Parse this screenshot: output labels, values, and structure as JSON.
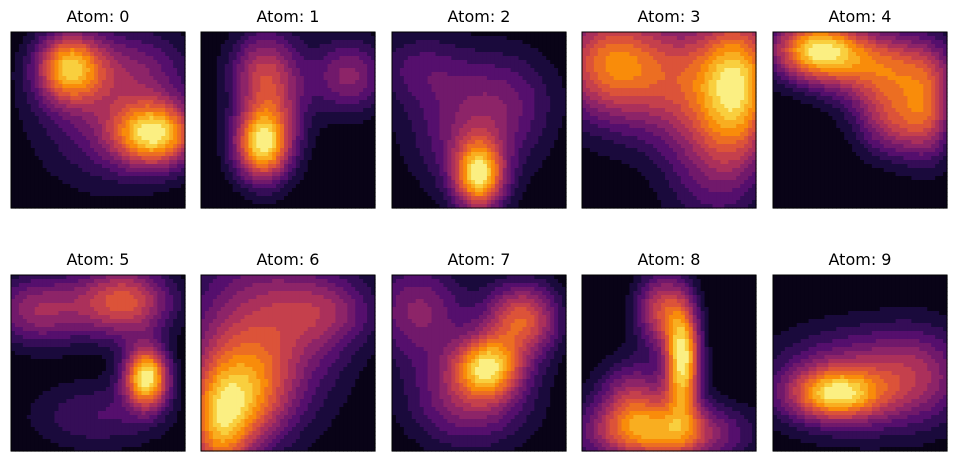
{
  "chart_data": {
    "type": "heatmap",
    "colormap": "inferno",
    "axes_ticks": false,
    "grid": false,
    "levels": 14,
    "panels": [
      {
        "title": "Atom: 0",
        "blobs": [
          {
            "cx": 0.83,
            "cy": 0.58,
            "sx": 0.17,
            "sy": 0.13,
            "a": 1.0
          },
          {
            "cx": 0.33,
            "cy": 0.2,
            "sx": 0.13,
            "sy": 0.14,
            "a": 0.85
          },
          {
            "cx": 0.55,
            "cy": 0.45,
            "sx": 0.3,
            "sy": 0.3,
            "a": 0.35
          },
          {
            "cx": 0.7,
            "cy": 0.2,
            "sx": 0.25,
            "sy": 0.15,
            "a": 0.25
          }
        ]
      },
      {
        "title": "Atom: 1",
        "blobs": [
          {
            "cx": 0.35,
            "cy": 0.65,
            "sx": 0.11,
            "sy": 0.14,
            "a": 1.0
          },
          {
            "cx": 0.4,
            "cy": 0.35,
            "sx": 0.14,
            "sy": 0.25,
            "a": 0.65
          },
          {
            "cx": 0.85,
            "cy": 0.25,
            "sx": 0.15,
            "sy": 0.15,
            "a": 0.5
          },
          {
            "cx": 0.3,
            "cy": 0.2,
            "sx": 0.12,
            "sy": 0.12,
            "a": 0.2
          }
        ]
      },
      {
        "title": "Atom: 2",
        "blobs": [
          {
            "cx": 0.5,
            "cy": 0.82,
            "sx": 0.1,
            "sy": 0.14,
            "a": 1.0
          },
          {
            "cx": 0.45,
            "cy": 0.55,
            "sx": 0.25,
            "sy": 0.25,
            "a": 0.4
          },
          {
            "cx": 0.15,
            "cy": 0.2,
            "sx": 0.2,
            "sy": 0.15,
            "a": 0.25
          },
          {
            "cx": 0.7,
            "cy": 0.35,
            "sx": 0.2,
            "sy": 0.2,
            "a": 0.2
          }
        ]
      },
      {
        "title": "Atom: 3",
        "blobs": [
          {
            "cx": 0.9,
            "cy": 0.3,
            "sx": 0.15,
            "sy": 0.3,
            "a": 1.0
          },
          {
            "cx": 0.5,
            "cy": 0.25,
            "sx": 0.4,
            "sy": 0.25,
            "a": 0.85
          },
          {
            "cx": 0.15,
            "cy": 0.15,
            "sx": 0.2,
            "sy": 0.2,
            "a": 0.7
          },
          {
            "cx": 0.75,
            "cy": 0.7,
            "sx": 0.2,
            "sy": 0.3,
            "a": 0.5
          }
        ]
      },
      {
        "title": "Atom: 4",
        "blobs": [
          {
            "cx": 0.25,
            "cy": 0.1,
            "sx": 0.18,
            "sy": 0.12,
            "a": 1.0
          },
          {
            "cx": 0.65,
            "cy": 0.2,
            "sx": 0.25,
            "sy": 0.15,
            "a": 0.7
          },
          {
            "cx": 0.7,
            "cy": 0.5,
            "sx": 0.15,
            "sy": 0.15,
            "a": 0.55
          },
          {
            "cx": 0.9,
            "cy": 0.45,
            "sx": 0.1,
            "sy": 0.2,
            "a": 0.45
          }
        ]
      },
      {
        "title": "Atom: 5",
        "blobs": [
          {
            "cx": 0.78,
            "cy": 0.58,
            "sx": 0.09,
            "sy": 0.12,
            "a": 1.0
          },
          {
            "cx": 0.65,
            "cy": 0.15,
            "sx": 0.2,
            "sy": 0.15,
            "a": 0.65
          },
          {
            "cx": 0.15,
            "cy": 0.2,
            "sx": 0.2,
            "sy": 0.15,
            "a": 0.45
          },
          {
            "cx": 0.5,
            "cy": 0.8,
            "sx": 0.3,
            "sy": 0.15,
            "a": 0.25
          }
        ]
      },
      {
        "title": "Atom: 6",
        "blobs": [
          {
            "cx": 0.1,
            "cy": 0.85,
            "sx": 0.13,
            "sy": 0.25,
            "a": 1.0
          },
          {
            "cx": 0.35,
            "cy": 0.35,
            "sx": 0.3,
            "sy": 0.35,
            "a": 0.75
          },
          {
            "cx": 0.3,
            "cy": 0.7,
            "sx": 0.15,
            "sy": 0.2,
            "a": 0.55
          },
          {
            "cx": 0.75,
            "cy": 0.2,
            "sx": 0.2,
            "sy": 0.15,
            "a": 0.4
          }
        ]
      },
      {
        "title": "Atom: 7",
        "blobs": [
          {
            "cx": 0.55,
            "cy": 0.52,
            "sx": 0.13,
            "sy": 0.12,
            "a": 1.0
          },
          {
            "cx": 0.75,
            "cy": 0.25,
            "sx": 0.15,
            "sy": 0.15,
            "a": 0.9
          },
          {
            "cx": 0.45,
            "cy": 0.7,
            "sx": 0.25,
            "sy": 0.2,
            "a": 0.6
          },
          {
            "cx": 0.15,
            "cy": 0.2,
            "sx": 0.2,
            "sy": 0.2,
            "a": 0.55
          }
        ]
      },
      {
        "title": "Atom: 8",
        "blobs": [
          {
            "cx": 0.58,
            "cy": 0.48,
            "sx": 0.07,
            "sy": 0.22,
            "a": 1.0
          },
          {
            "cx": 0.45,
            "cy": 0.9,
            "sx": 0.3,
            "sy": 0.12,
            "a": 0.75
          },
          {
            "cx": 0.45,
            "cy": 0.2,
            "sx": 0.1,
            "sy": 0.15,
            "a": 0.55
          },
          {
            "cx": 0.3,
            "cy": 0.7,
            "sx": 0.15,
            "sy": 0.15,
            "a": 0.45
          }
        ]
      },
      {
        "title": "Atom: 9",
        "blobs": [
          {
            "cx": 0.35,
            "cy": 0.68,
            "sx": 0.18,
            "sy": 0.1,
            "a": 1.0
          },
          {
            "cx": 0.5,
            "cy": 0.6,
            "sx": 0.35,
            "sy": 0.2,
            "a": 0.7
          },
          {
            "cx": 0.85,
            "cy": 0.55,
            "sx": 0.2,
            "sy": 0.2,
            "a": 0.35
          }
        ]
      }
    ]
  }
}
